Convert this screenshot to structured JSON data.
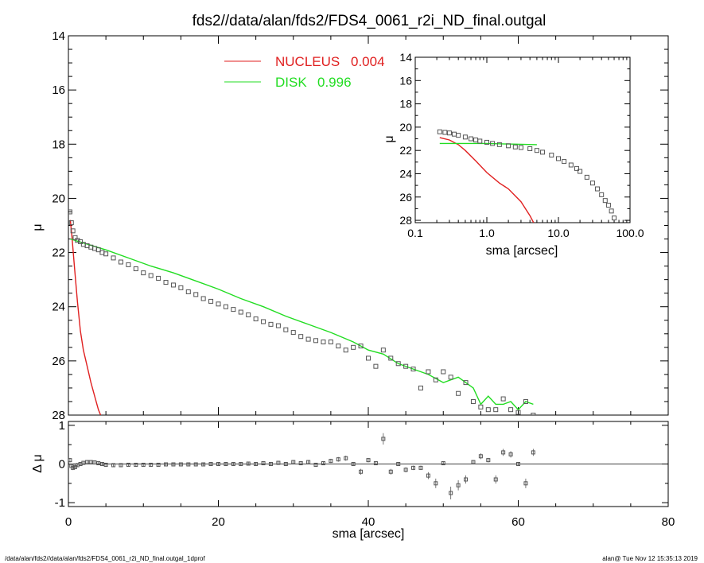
{
  "title": "fds2//data/alan/fds2/FDS4_0061_r2i_ND_final.outgal",
  "footer_left": "/data/alan/fds2//data/alan/fds2/FDS4_0061_r2i_ND_final.outgal_1dprof",
  "footer_right": "alan@  Tue Nov 12 15:35:13 2019",
  "colors": {
    "nucleus": "#e02020",
    "disk": "#22dd22",
    "model": "#22dd22",
    "data": "#555555",
    "residual": "#555555"
  },
  "chart_data": [
    {
      "id": "main",
      "type": "scatter",
      "xlabel": "",
      "ylabel": "μ",
      "xlim": [
        0,
        80
      ],
      "ylim": [
        28,
        14
      ],
      "xticks": [
        0,
        20,
        40,
        60,
        80
      ],
      "yticks": [
        14,
        16,
        18,
        20,
        22,
        24,
        26,
        28
      ],
      "legend": [
        {
          "label": "NUCLEUS",
          "value": "0.004",
          "color": "#e02020"
        },
        {
          "label": "DISK",
          "value": "0.996",
          "color": "#22dd22"
        }
      ],
      "legend_position": "top-center",
      "series": [
        {
          "name": "NUCLEUS",
          "kind": "line",
          "color": "#e02020",
          "x": [
            0.25,
            0.5,
            0.8,
            1.2,
            1.6,
            2.0,
            2.5,
            3.0,
            3.5,
            4.0,
            4.3
          ],
          "y": [
            20.8,
            21.5,
            22.5,
            23.8,
            24.9,
            25.6,
            26.2,
            26.8,
            27.3,
            27.8,
            28.0
          ]
        },
        {
          "name": "DISK",
          "kind": "line",
          "color": "#22dd22",
          "x": [
            0.25,
            2,
            5,
            8,
            11,
            14,
            17,
            20,
            23,
            26,
            29,
            32,
            35,
            38,
            40,
            42,
            44,
            46,
            48,
            50,
            52,
            54,
            55,
            56,
            57,
            58,
            59,
            60,
            61,
            62
          ],
          "y": [
            21.5,
            21.65,
            21.9,
            22.2,
            22.5,
            22.75,
            23.05,
            23.35,
            23.7,
            24.0,
            24.35,
            24.65,
            24.95,
            25.3,
            25.6,
            25.75,
            26.1,
            26.3,
            26.5,
            26.8,
            26.6,
            27.0,
            27.6,
            27.3,
            27.6,
            27.6,
            27.5,
            27.8,
            27.5,
            27.6
          ]
        },
        {
          "name": "",
          "kind": "points",
          "color": "#555555",
          "x": [
            0.2,
            0.4,
            0.6,
            0.9,
            1.2,
            1.6,
            2.0,
            2.5,
            3.0,
            3.5,
            4.0,
            4.5,
            5.0,
            6,
            7,
            8,
            9,
            10,
            11,
            12,
            13,
            14,
            15,
            16,
            17,
            18,
            19,
            20,
            21,
            22,
            23,
            24,
            25,
            26,
            27,
            28,
            29,
            30,
            31,
            32,
            33,
            34,
            35,
            36,
            37,
            38,
            39,
            40,
            41,
            42,
            43,
            44,
            45,
            46,
            47,
            48,
            49,
            50,
            51,
            52,
            53,
            54,
            55,
            56,
            57,
            58,
            59,
            60,
            61,
            62
          ],
          "y": [
            20.5,
            20.9,
            21.2,
            21.45,
            21.55,
            21.6,
            21.7,
            21.75,
            21.8,
            21.85,
            21.9,
            22.0,
            22.05,
            22.2,
            22.35,
            22.45,
            22.6,
            22.75,
            22.85,
            22.95,
            23.1,
            23.2,
            23.3,
            23.45,
            23.55,
            23.7,
            23.8,
            23.9,
            24.0,
            24.1,
            24.2,
            24.3,
            24.45,
            24.55,
            24.65,
            24.7,
            24.85,
            24.95,
            25.1,
            25.2,
            25.25,
            25.3,
            25.3,
            25.45,
            25.6,
            25.5,
            25.45,
            25.9,
            26.2,
            25.6,
            25.9,
            26.1,
            26.2,
            26.3,
            27.0,
            26.4,
            26.7,
            26.4,
            26.6,
            27.2,
            26.8,
            27.5,
            27.7,
            27.8,
            27.8,
            27.4,
            27.8,
            27.9,
            27.5,
            28.0
          ]
        }
      ]
    },
    {
      "id": "residual",
      "type": "scatter",
      "xlabel": "sma [arcsec]",
      "ylabel": "Δ μ",
      "xlim": [
        0,
        80
      ],
      "ylim": [
        -1.1,
        1.1
      ],
      "xticks": [
        0,
        20,
        40,
        60,
        80
      ],
      "yticks": [
        -1,
        0,
        1
      ],
      "series": [
        {
          "name": "",
          "kind": "points",
          "color": "#555555",
          "x": [
            0.2,
            0.4,
            0.6,
            0.9,
            1.2,
            1.6,
            2.0,
            2.5,
            3.0,
            3.5,
            4.0,
            4.5,
            5.0,
            6,
            7,
            8,
            9,
            10,
            11,
            12,
            13,
            14,
            15,
            16,
            17,
            18,
            19,
            20,
            21,
            22,
            23,
            24,
            25,
            26,
            27,
            28,
            29,
            30,
            31,
            32,
            33,
            34,
            35,
            36,
            37,
            38,
            39,
            40,
            41,
            42,
            43,
            44,
            45,
            46,
            47,
            48,
            49,
            50,
            51,
            52,
            53,
            54,
            55,
            56,
            57,
            58,
            59,
            60,
            61,
            62
          ],
          "y": [
            0.1,
            -0.05,
            -0.1,
            -0.08,
            -0.03,
            0.0,
            0.03,
            0.05,
            0.05,
            0.04,
            0.02,
            0.0,
            -0.02,
            -0.03,
            -0.03,
            -0.02,
            -0.02,
            -0.02,
            -0.02,
            -0.02,
            -0.01,
            -0.01,
            -0.01,
            -0.01,
            -0.01,
            -0.01,
            0.0,
            0.0,
            0.0,
            0.0,
            0.0,
            0.01,
            0.0,
            0.02,
            0.0,
            0.03,
            0.0,
            0.05,
            0.02,
            0.05,
            -0.02,
            0.02,
            0.08,
            0.12,
            0.15,
            0.0,
            -0.2,
            0.1,
            0.02,
            0.65,
            -0.2,
            0.0,
            -0.15,
            -0.1,
            -0.1,
            -0.3,
            -0.5,
            0.02,
            -0.75,
            -0.55,
            -0.4,
            0.05,
            0.2,
            0.1,
            -0.4,
            0.3,
            0.25,
            0.0,
            -0.5,
            0.3
          ]
        }
      ]
    },
    {
      "id": "inset",
      "type": "scatter",
      "xlabel": "sma [arcsec]",
      "ylabel": "μ",
      "xscale": "log",
      "xlim": [
        0.1,
        100.0
      ],
      "ylim": [
        28.2,
        14
      ],
      "xticks": [
        "0.1",
        "1.0",
        "10.0",
        "100.0"
      ],
      "yticks": [
        14,
        16,
        18,
        20,
        22,
        24,
        26,
        28
      ],
      "series": [
        {
          "name": "NUCLEUS",
          "kind": "line",
          "color": "#e02020",
          "x": [
            0.22,
            0.3,
            0.4,
            0.5,
            0.7,
            1.0,
            1.5,
            2.0,
            3.0,
            4.0,
            4.5
          ],
          "y": [
            20.9,
            21.1,
            21.5,
            22.0,
            22.9,
            23.9,
            24.8,
            25.3,
            26.4,
            27.6,
            28.2
          ]
        },
        {
          "name": "DISK",
          "kind": "line",
          "color": "#22dd22",
          "x": [
            0.22,
            0.5,
            1.0,
            2.0,
            5.0
          ],
          "y": [
            21.4,
            21.4,
            21.4,
            21.45,
            21.5
          ]
        },
        {
          "name": "",
          "kind": "points",
          "color": "#555555",
          "x": [
            0.22,
            0.26,
            0.3,
            0.35,
            0.4,
            0.5,
            0.6,
            0.7,
            0.8,
            1.0,
            1.2,
            1.5,
            2.0,
            2.5,
            3.0,
            4.0,
            5.0,
            6.0,
            8.0,
            10.0,
            12.0,
            15.0,
            18.0,
            20.0,
            25.0,
            30.0,
            35.0,
            40.0,
            45.0,
            50.0,
            55.0,
            60.0
          ],
          "y": [
            20.4,
            20.45,
            20.5,
            20.6,
            20.7,
            20.85,
            21.0,
            21.1,
            21.2,
            21.3,
            21.4,
            21.5,
            21.6,
            21.7,
            21.75,
            21.85,
            22.0,
            22.15,
            22.4,
            22.7,
            22.95,
            23.25,
            23.55,
            23.8,
            24.3,
            24.8,
            25.3,
            25.8,
            26.3,
            26.7,
            27.2,
            27.8
          ]
        }
      ]
    }
  ]
}
